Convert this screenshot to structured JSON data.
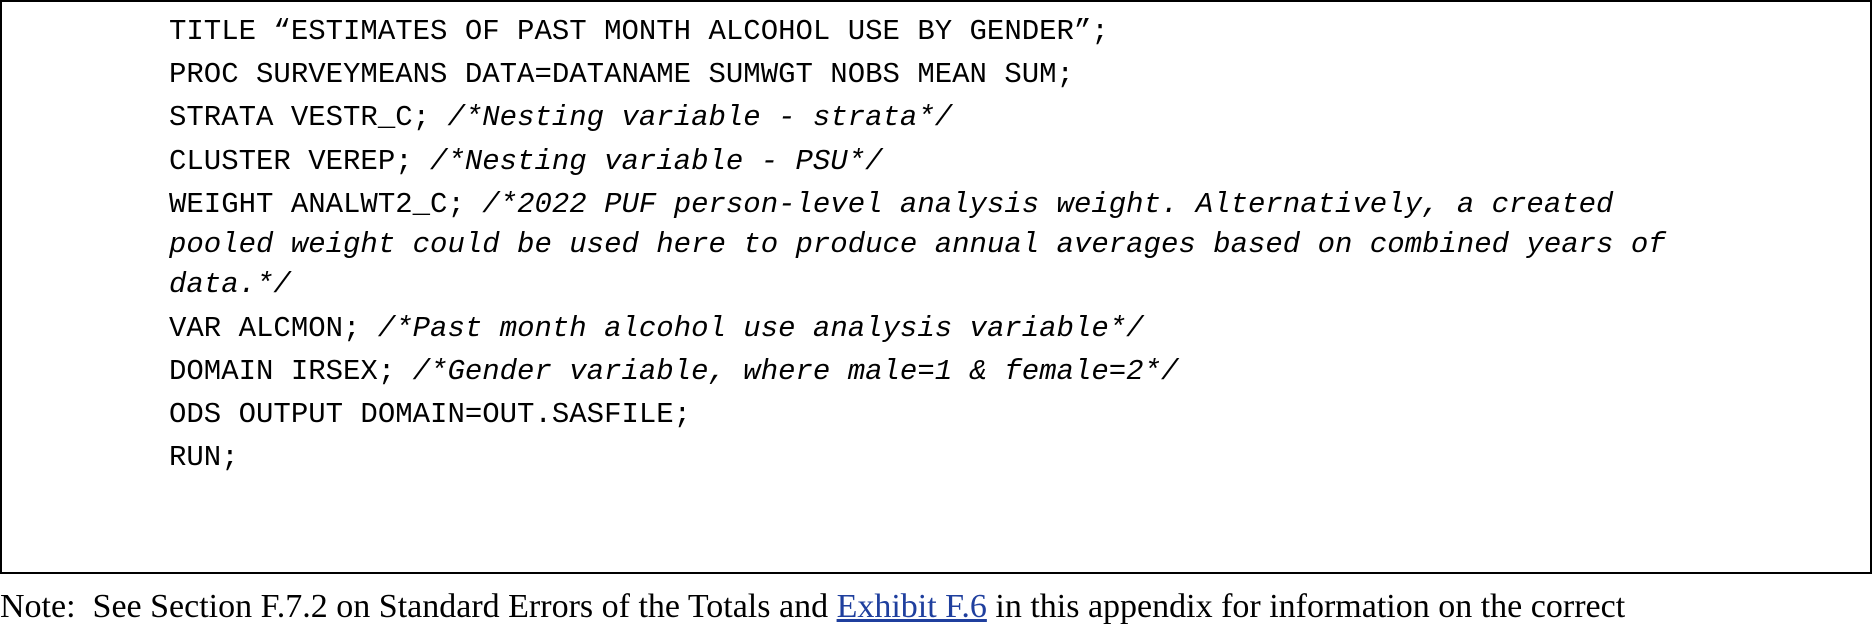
{
  "code_block": {
    "lines": [
      {
        "code": "TITLE “ESTIMATES OF PAST MONTH ALCOHOL USE BY GENDER”;",
        "comment": ""
      },
      {
        "code": "PROC SURVEYMEANS DATA=DATANAME SUMWGT NOBS MEAN SUM;",
        "comment": ""
      },
      {
        "code": "STRATA VESTR_C; ",
        "comment": "/*Nesting variable - strata*/"
      },
      {
        "code": "CLUSTER VEREP; ",
        "comment": "/*Nesting variable - PSU*/"
      },
      {
        "code": "WEIGHT ANALWT2_C; ",
        "comment": "/*2022 PUF person-level analysis weight. Alternatively, a created"
      },
      {
        "code": "",
        "comment": "pooled weight could be used here to produce annual averages based on combined years of"
      },
      {
        "code": "",
        "comment": "data.*/"
      },
      {
        "code": "VAR ALCMON; ",
        "comment": "/*Past month alcohol use analysis variable*/"
      },
      {
        "code": "DOMAIN IRSEX; ",
        "comment": "/*Gender variable, where male=1 & female=2*/"
      },
      {
        "code": "ODS OUTPUT DOMAIN=OUT.SASFILE;",
        "comment": ""
      },
      {
        "code": "RUN;",
        "comment": ""
      }
    ]
  },
  "note": {
    "prefix": "Note:  See Section F.7.2 on Standard Errors of the Totals and ",
    "link_text": "Exhibit F.6",
    "suffix": " in this appendix for information on the correct",
    "link_color": "#1f3f9e"
  }
}
